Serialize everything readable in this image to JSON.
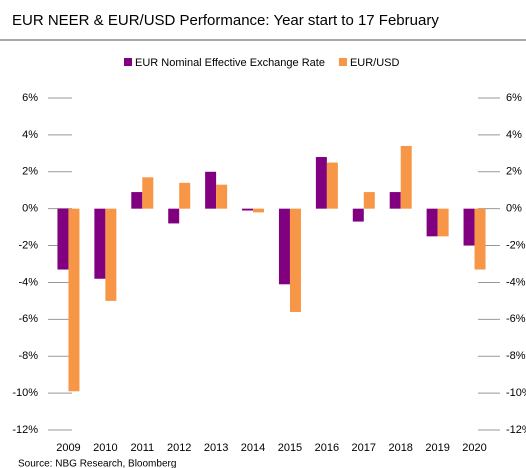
{
  "chart_data": {
    "type": "bar",
    "title": "EUR NEER & EUR/USD Performance: Year start to 17 February",
    "source": "Source: NBG Research, Bloomberg",
    "categories": [
      "2009",
      "2010",
      "2011",
      "2012",
      "2013",
      "2014",
      "2015",
      "2016",
      "2017",
      "2018",
      "2019",
      "2020"
    ],
    "series": [
      {
        "name": "EUR Nominal Effective Exchange Rate",
        "color": "#800080",
        "values": [
          -3.3,
          -3.8,
          0.9,
          -0.8,
          2.0,
          -0.1,
          -4.1,
          2.8,
          -0.7,
          0.9,
          -1.5,
          -2.0
        ]
      },
      {
        "name": "EUR/USD",
        "color": "#f79646",
        "values": [
          -9.9,
          -5.0,
          1.7,
          1.4,
          1.3,
          -0.2,
          -5.6,
          2.5,
          0.9,
          3.4,
          -1.5,
          -3.3
        ]
      }
    ],
    "ylim": [
      -12,
      6
    ],
    "yticks": [
      {
        "value": -12,
        "label": "-12%"
      },
      {
        "value": -10,
        "label": "-10%"
      },
      {
        "value": -8,
        "label": "-8%"
      },
      {
        "value": -6,
        "label": "-6%"
      },
      {
        "value": -4,
        "label": "-4%"
      },
      {
        "value": -2,
        "label": "-2%"
      },
      {
        "value": 0,
        "label": "0%"
      },
      {
        "value": 2,
        "label": "2%"
      },
      {
        "value": 4,
        "label": "4%"
      },
      {
        "value": 6,
        "label": "6%"
      }
    ],
    "legend": "top"
  }
}
